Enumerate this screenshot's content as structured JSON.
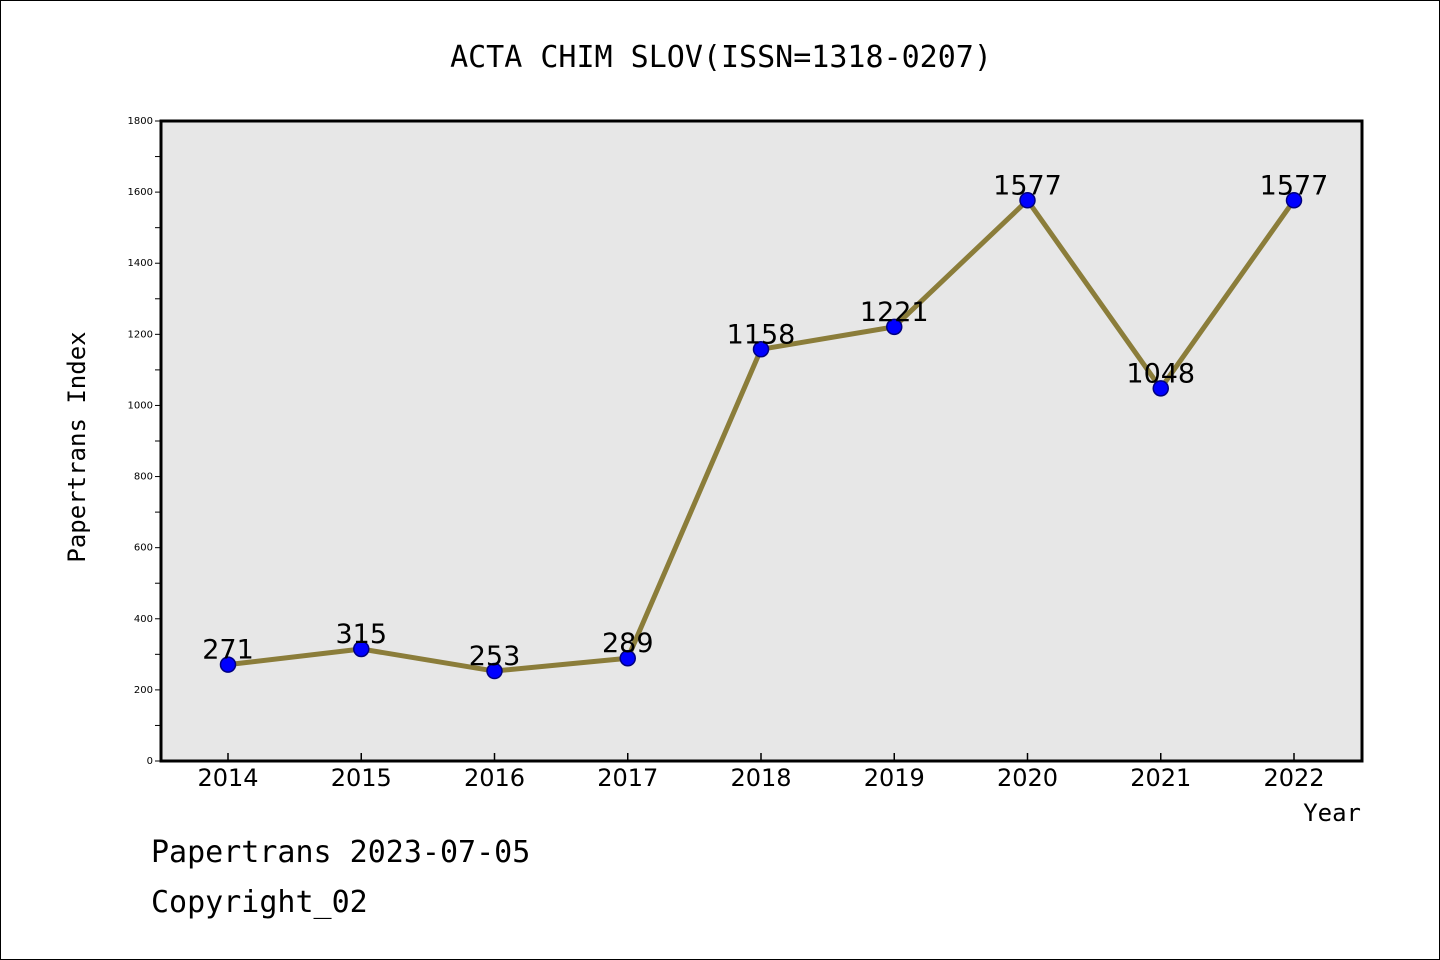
{
  "chart_data": {
    "type": "line",
    "title": "ACTA CHIM SLOV(ISSN=1318-0207)",
    "xlabel": "Year",
    "ylabel": "Papertrans Index",
    "categories": [
      "2014",
      "2015",
      "2016",
      "2017",
      "2018",
      "2019",
      "2020",
      "2021",
      "2022"
    ],
    "series": [
      {
        "values": [
          271,
          315,
          253,
          289,
          1158,
          1221,
          1577,
          1048,
          1577
        ]
      }
    ],
    "data_labels": [
      "271",
      "315",
      "253",
      "289",
      "1158",
      "1221",
      "1577",
      "1048",
      "1577"
    ],
    "ylim": [
      0,
      1800
    ],
    "yticks": [
      "0",
      "200",
      "400",
      "600",
      "800",
      "1000",
      "1200",
      "1400",
      "1600",
      "1800"
    ],
    "grid": false,
    "colors": {
      "line": "#8B7D3A",
      "marker_fill": "#0000FF",
      "marker_edge": "#000080",
      "plot_bg": "#E7E7E7"
    }
  },
  "footer": {
    "line1": "Papertrans 2023-07-05",
    "line2": "Copyright_02"
  }
}
